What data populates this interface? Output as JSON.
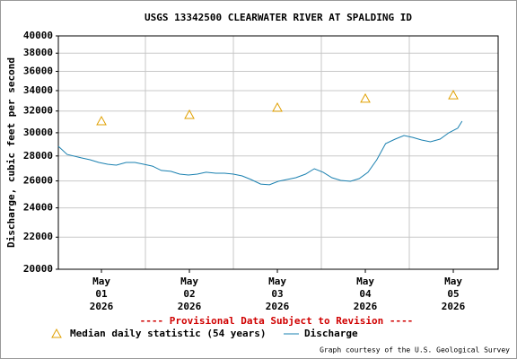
{
  "chart_data": {
    "type": "line",
    "title": "USGS 13342500 CLEARWATER RIVER AT SPALDING ID",
    "y_label": "Discharge, cubic feet per second",
    "note": "---- Provisional Data Subject to Revision ----",
    "credit": "Graph courtesy of the U.S. Geological Survey",
    "ylog": true,
    "grid": true,
    "xlim": [
      0.51,
      5.51
    ],
    "ylim": [
      20000,
      40000
    ],
    "xticks": [
      {
        "value": 1,
        "label": [
          "May",
          "01",
          "2026"
        ]
      },
      {
        "value": 2,
        "label": [
          "May",
          "02",
          "2026"
        ]
      },
      {
        "value": 3,
        "label": [
          "May",
          "03",
          "2026"
        ]
      },
      {
        "value": 4,
        "label": [
          "May",
          "04",
          "2026"
        ]
      },
      {
        "value": 5,
        "label": [
          "May",
          "05",
          "2026"
        ]
      }
    ],
    "xminorticks": [
      1.5,
      2.5,
      3.5,
      4.5
    ],
    "yticks": [
      20000,
      22000,
      24000,
      26000,
      28000,
      30000,
      32000,
      34000,
      36000,
      38000,
      40000
    ],
    "series": [
      {
        "name": "Median daily statistic (54 years)",
        "color": "#e0a000",
        "marker": "triangle",
        "x": [
          1,
          2,
          3,
          4,
          5
        ],
        "values": [
          31050,
          31640,
          32320,
          33200,
          33540
        ]
      },
      {
        "name": "Discharge",
        "color": "#1a80b0",
        "marker": "line",
        "x": [
          0.51,
          0.61,
          0.77,
          0.87,
          0.97,
          1.07,
          1.17,
          1.28,
          1.38,
          1.48,
          1.58,
          1.68,
          1.79,
          1.89,
          1.99,
          2.09,
          2.19,
          2.3,
          2.4,
          2.5,
          2.6,
          2.7,
          2.81,
          2.91,
          3.01,
          3.11,
          3.21,
          3.32,
          3.42,
          3.52,
          3.62,
          3.72,
          3.83,
          3.93,
          4.03,
          4.13,
          4.23,
          4.34,
          4.44,
          4.54,
          4.64,
          4.74,
          4.85,
          4.95,
          5.05,
          5.1
        ],
        "values": [
          28820,
          28130,
          27840,
          27690,
          27470,
          27320,
          27250,
          27470,
          27470,
          27320,
          27170,
          26820,
          26750,
          26530,
          26460,
          26530,
          26680,
          26600,
          26600,
          26530,
          26390,
          26110,
          25760,
          25700,
          25970,
          26110,
          26250,
          26530,
          26960,
          26680,
          26250,
          26040,
          25970,
          26180,
          26680,
          27690,
          29050,
          29440,
          29750,
          29590,
          29360,
          29200,
          29440,
          30000,
          30400,
          31050
        ]
      }
    ]
  }
}
